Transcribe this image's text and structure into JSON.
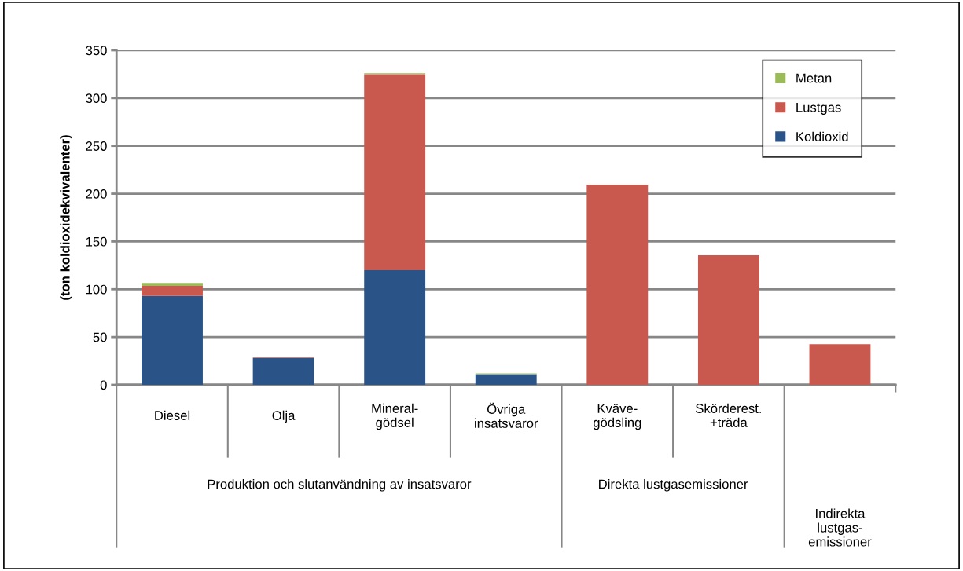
{
  "chart_data": {
    "type": "bar",
    "stacked": true,
    "ylabel": "(ton koldioxidekvivalenter)",
    "categories": [
      "Diesel",
      "Olja",
      "Mineral-\ngödsel",
      "Övriga\ninsatsvaror",
      "Kväve-\ngödsling",
      "Skörderest.\n+träda",
      null
    ],
    "series": [
      {
        "name": "Koldioxid",
        "color": "#2a5487",
        "values": [
          93,
          28,
          120,
          11,
          0,
          0,
          0
        ]
      },
      {
        "name": "Lustgas",
        "color": "#c9584f",
        "values": [
          10.5,
          0.5,
          205,
          0,
          209.5,
          135.5,
          42.5
        ]
      },
      {
        "name": "Metan",
        "color": "#9bbb59",
        "values": [
          3,
          0,
          1,
          1,
          0,
          0,
          0
        ]
      }
    ],
    "ylim": [
      0,
      350
    ],
    "yticks": [
      0,
      50,
      100,
      150,
      200,
      250,
      300,
      350
    ],
    "grid": "y",
    "legend": "top right",
    "annotations": [
      "Produktion och slutanvändning av insatsvaror",
      "Direkta lustgasemissioner",
      "Indirekta\nlustgas-\nemissioner"
    ]
  }
}
